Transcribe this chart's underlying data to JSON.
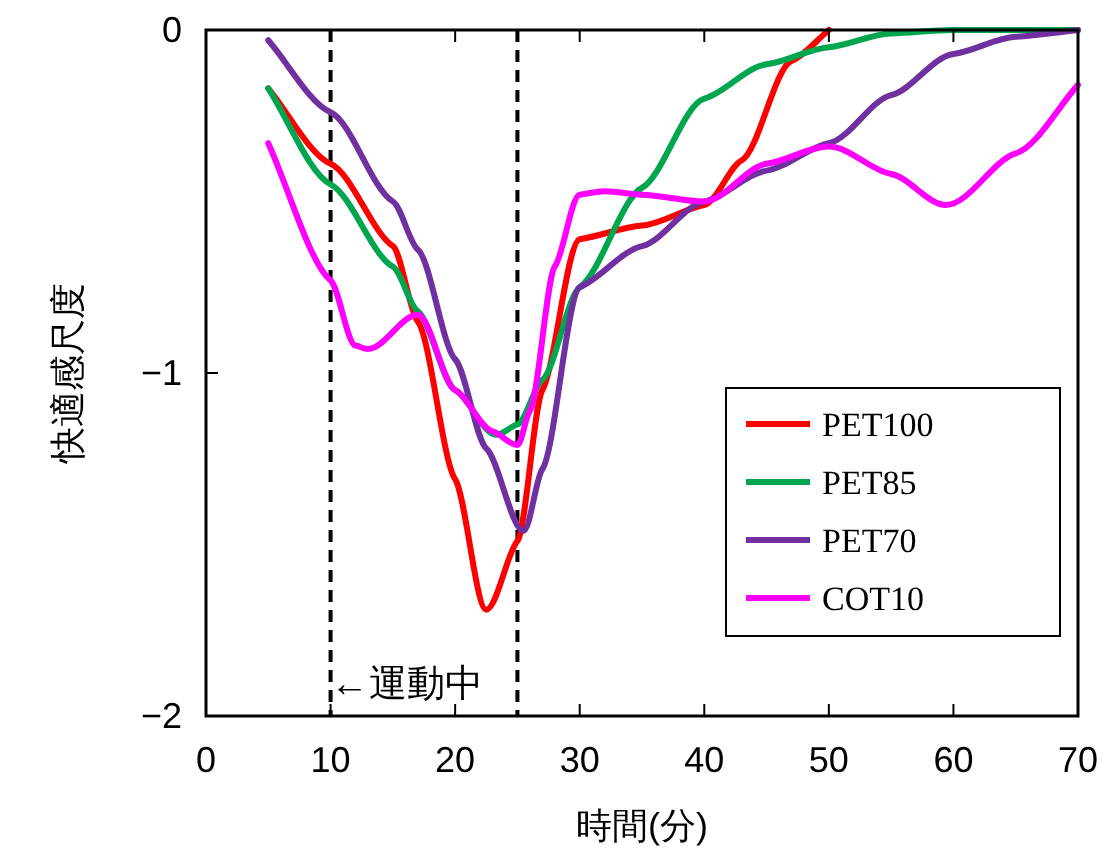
{
  "chart_data": {
    "type": "line",
    "xlabel": "時間(分)",
    "ylabel": "快適感尺度",
    "xlim": [
      0,
      70
    ],
    "ylim": [
      -2,
      0
    ],
    "xticks": [
      0,
      10,
      20,
      30,
      40,
      50,
      60,
      70
    ],
    "yticks": [
      {
        "value": -2,
        "label": "−2"
      },
      {
        "value": -1,
        "label": "−1"
      },
      0
    ],
    "grid": false,
    "legend": "bottom right",
    "marker": "none",
    "line_style": "solid",
    "series": [
      {
        "name": "PET100",
        "color": "#ff0000",
        "x": [
          5,
          10,
          15,
          17,
          20,
          22.5,
          25,
          27,
          30,
          35,
          40,
          43,
          47,
          50
        ],
        "values": [
          -0.17,
          -0.39,
          -0.63,
          -0.85,
          -1.31,
          -1.69,
          -1.49,
          -1.05,
          -0.61,
          -0.57,
          -0.51,
          -0.38,
          -0.09,
          0
        ]
      },
      {
        "name": "PET85",
        "color": "#00a550",
        "x": [
          5,
          10,
          15,
          17,
          20,
          23.3,
          25,
          27,
          30,
          35,
          40,
          45,
          50,
          55,
          60,
          70
        ],
        "values": [
          -0.17,
          -0.45,
          -0.69,
          -0.82,
          -1.05,
          -1.18,
          -1.15,
          -1.02,
          -0.75,
          -0.46,
          -0.2,
          -0.1,
          -0.05,
          -0.01,
          0,
          0
        ]
      },
      {
        "name": "PET70",
        "color": "#7030a0",
        "x": [
          5,
          10,
          15,
          17,
          20,
          22.5,
          25.5,
          27,
          30,
          35,
          40,
          45,
          50,
          55,
          60,
          65,
          70
        ],
        "values": [
          -0.03,
          -0.24,
          -0.5,
          -0.64,
          -0.96,
          -1.22,
          -1.46,
          -1.28,
          -0.75,
          -0.63,
          -0.5,
          -0.41,
          -0.33,
          -0.19,
          -0.07,
          -0.02,
          0
        ]
      },
      {
        "name": "COT10",
        "color": "#ff00ff",
        "x": [
          5,
          10,
          12,
          13,
          17,
          20,
          23,
          25,
          26,
          28,
          30,
          32,
          35,
          40,
          45,
          50,
          55,
          59.4,
          65,
          70
        ],
        "values": [
          -0.33,
          -0.73,
          -0.92,
          -0.93,
          -0.83,
          -1.05,
          -1.17,
          -1.21,
          -1.11,
          -0.69,
          -0.48,
          -0.47,
          -0.48,
          -0.5,
          -0.39,
          -0.34,
          -0.42,
          -0.51,
          -0.36,
          -0.16
        ]
      }
    ],
    "ref_lines": [
      {
        "axis": "x",
        "value": 10,
        "color": "#000000",
        "line_style": "dashed"
      },
      {
        "axis": "x",
        "value": 25,
        "color": "#000000",
        "line_style": "dashed"
      }
    ],
    "annotations": [
      {
        "text": "←運動中",
        "x": 10,
        "y": -1.9
      }
    ]
  }
}
